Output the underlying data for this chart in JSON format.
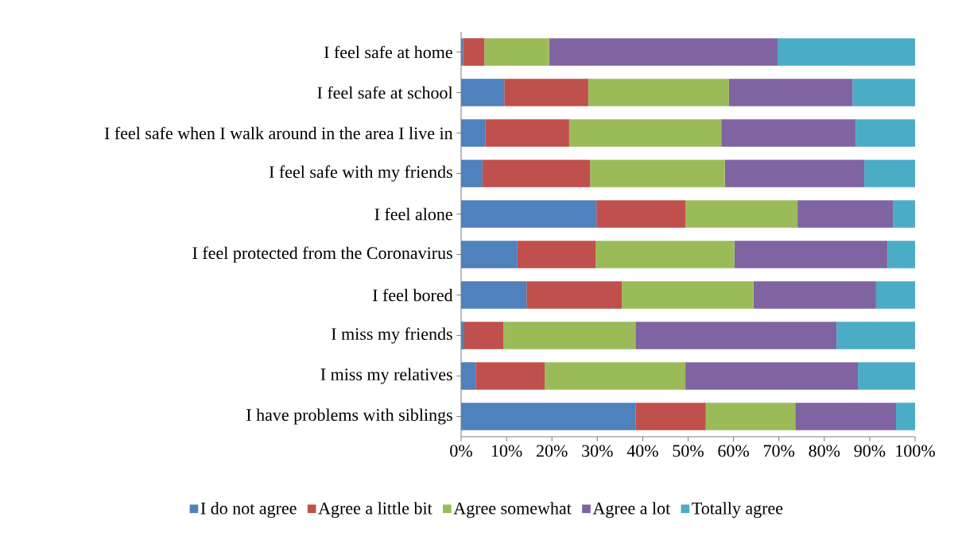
{
  "chart_data": {
    "type": "bar",
    "orientation": "horizontal",
    "stacked": true,
    "categories": [
      "I feel safe at home",
      "I feel safe at school",
      "I feel safe when I walk around in the area I live in",
      "I feel safe with my friends",
      "I feel alone",
      "I feel protected from the Coronavirus",
      "I feel bored",
      "I miss my friends",
      "I miss my relatives",
      "I have problems with siblings"
    ],
    "series": [
      {
        "name": "I do not agree",
        "color": "#4f81bd",
        "values": [
          0.4,
          9.5,
          5.3,
          4.7,
          29.8,
          12.4,
          14.4,
          0.7,
          3.2,
          38.4
        ]
      },
      {
        "name": "Agree a little bit",
        "color": "#c0504d",
        "values": [
          4.7,
          18.5,
          18.5,
          23.7,
          19.6,
          17.2,
          21.0,
          8.6,
          15.2,
          15.5
        ]
      },
      {
        "name": "Agree somewhat",
        "color": "#9bbb59",
        "values": [
          14.3,
          31.0,
          33.5,
          29.7,
          24.7,
          30.6,
          29.0,
          29.1,
          31.0,
          19.7
        ]
      },
      {
        "name": "Agree a lot",
        "color": "#8064a2",
        "values": [
          50.3,
          27.2,
          29.6,
          30.7,
          21.0,
          33.7,
          27.0,
          44.3,
          38.0,
          22.2
        ]
      },
      {
        "name": "Totally agree",
        "color": "#4bacc6",
        "values": [
          30.3,
          13.8,
          13.1,
          11.2,
          4.9,
          6.1,
          8.6,
          17.3,
          12.6,
          4.2
        ]
      }
    ],
    "xlim": [
      0,
      100
    ],
    "xticks": [
      {
        "value": 0,
        "label": "0%"
      },
      {
        "value": 10,
        "label": "10%"
      },
      {
        "value": 20,
        "label": "20%"
      },
      {
        "value": 30,
        "label": "30%"
      },
      {
        "value": 40,
        "label": "40%"
      },
      {
        "value": 50,
        "label": "50%"
      },
      {
        "value": 60,
        "label": "60%"
      },
      {
        "value": 70,
        "label": "70%"
      },
      {
        "value": 80,
        "label": "80%"
      },
      {
        "value": 90,
        "label": "90%"
      },
      {
        "value": 100,
        "label": "100%"
      }
    ],
    "legend": "bottom",
    "grid": false
  }
}
